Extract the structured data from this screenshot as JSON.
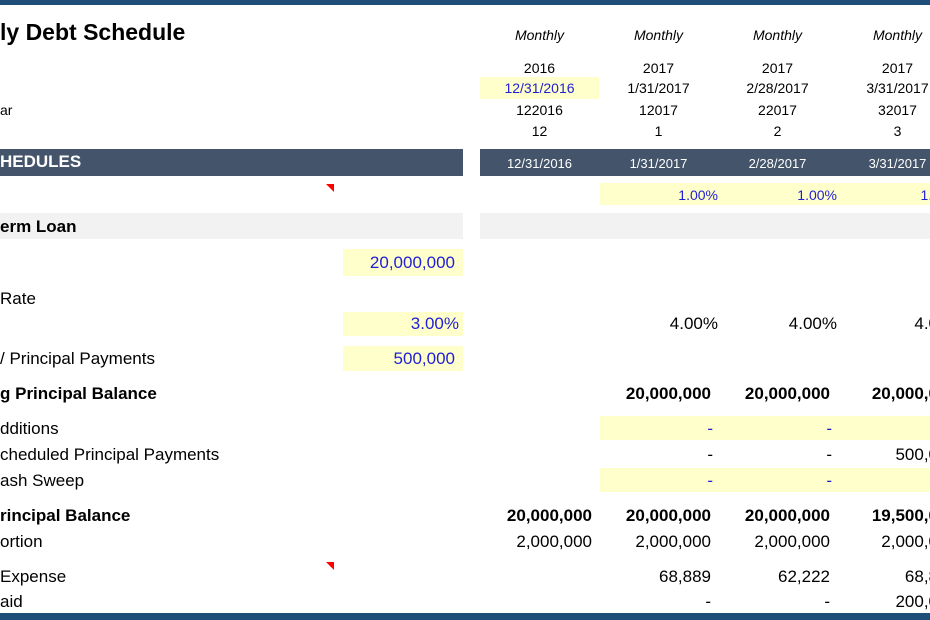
{
  "title": "ly Debt Schedule",
  "header": {
    "frequency": [
      "Monthly",
      "Monthly",
      "Monthly",
      "Monthly"
    ],
    "years": [
      "2016",
      "2017",
      "2017",
      "2017"
    ],
    "dates": [
      "12/31/2016",
      "1/31/2017",
      "2/28/2017",
      "3/31/2017"
    ],
    "label_ar": "ar",
    "period_codes": [
      "122016",
      "12017",
      "22017",
      "32017"
    ],
    "month_numbers": [
      "12",
      "1",
      "2",
      "3"
    ]
  },
  "section": {
    "label": "HEDULES",
    "dates": [
      "12/31/2016",
      "1/31/2017",
      "2/28/2017",
      "3/31/2017"
    ]
  },
  "rate_row": [
    "1.00%",
    "1.00%",
    "1.0"
  ],
  "term_loan": {
    "label": "erm Loan",
    "amount": "20,000,000",
    "rate_label": "Rate",
    "rate_input": "3.00%",
    "rate_values": [
      "4.00%",
      "4.00%",
      "4.0"
    ],
    "principal_payments_label": "/ Principal Payments",
    "principal_payments_input": "500,000"
  },
  "rows": {
    "beginning_label": "g Principal Balance",
    "beginning": [
      "20,000,000",
      "20,000,000",
      "20,000,0"
    ],
    "additions_label": "dditions",
    "additions": [
      "-",
      "-"
    ],
    "scheduled_label": "cheduled Principal Payments",
    "scheduled": [
      "-",
      "-",
      "500,0"
    ],
    "sweep_label": "ash Sweep",
    "sweep": [
      "-",
      "-"
    ],
    "ending_label": "rincipal Balance",
    "ending": [
      "20,000,000",
      "20,000,000",
      "20,000,000",
      "19,500,0"
    ],
    "portion_label": "ortion",
    "portion": [
      "2,000,000",
      "2,000,000",
      "2,000,000",
      "2,000,0"
    ],
    "expense_label": "Expense",
    "expense": [
      "68,889",
      "62,222",
      "68,8"
    ],
    "paid_label": "aid",
    "paid": [
      "-",
      "-",
      "200,0"
    ]
  }
}
